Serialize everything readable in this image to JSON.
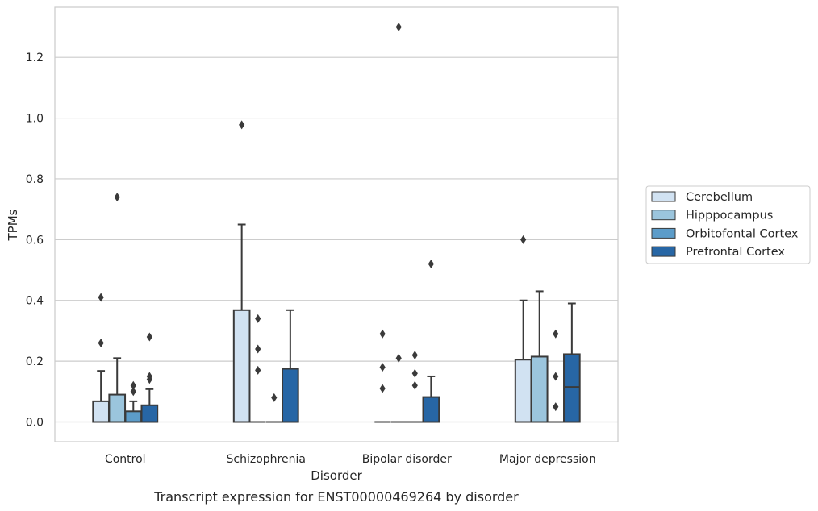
{
  "chart_data": {
    "type": "box",
    "caption": "Transcript expression for ENST00000469264 by disorder",
    "xlabel": "Disorder",
    "ylabel": "TPMs",
    "ylim": [
      -0.065,
      1.365
    ],
    "yticks": [
      0.0,
      0.2,
      0.4,
      0.6,
      0.8,
      1.0,
      1.2
    ],
    "ytick_labels": [
      "0.0",
      "0.2",
      "0.4",
      "0.6",
      "0.8",
      "1.0",
      "1.2"
    ],
    "grid": "horizontal",
    "legend_position": "right",
    "categories": [
      "Control",
      "Schizophrenia",
      "Bipolar disorder",
      "Major depression"
    ],
    "series": [
      {
        "name": "Cerebellum",
        "color": "#d1e2f2",
        "boxes": [
          {
            "q1": 0.0,
            "median": 0.0,
            "q3": 0.068,
            "whisker_low": 0.0,
            "whisker_high": 0.168,
            "outliers": [
              0.41,
              0.26
            ]
          },
          {
            "q1": 0.0,
            "median": 0.0,
            "q3": 0.368,
            "whisker_low": 0.0,
            "whisker_high": 0.65,
            "outliers": [
              0.978
            ]
          },
          {
            "q1": 0.0,
            "median": 0.0,
            "q3": 0.0,
            "whisker_low": 0.0,
            "whisker_high": 0.0,
            "outliers": [
              0.29,
              0.18,
              0.11
            ]
          },
          {
            "q1": 0.0,
            "median": 0.0,
            "q3": 0.205,
            "whisker_low": 0.0,
            "whisker_high": 0.4,
            "outliers": [
              0.6
            ]
          }
        ]
      },
      {
        "name": "Hipppocampus",
        "color": "#9bc5dd",
        "boxes": [
          {
            "q1": 0.0,
            "median": 0.0,
            "q3": 0.09,
            "whisker_low": 0.0,
            "whisker_high": 0.21,
            "outliers": [
              0.74
            ]
          },
          {
            "q1": 0.0,
            "median": 0.0,
            "q3": 0.0,
            "whisker_low": 0.0,
            "whisker_high": 0.0,
            "outliers": [
              0.34,
              0.24,
              0.17
            ]
          },
          {
            "q1": 0.0,
            "median": 0.0,
            "q3": 0.0,
            "whisker_low": 0.0,
            "whisker_high": 0.0,
            "outliers": [
              1.3,
              0.21
            ]
          },
          {
            "q1": 0.0,
            "median": 0.0,
            "q3": 0.215,
            "whisker_low": 0.0,
            "whisker_high": 0.43,
            "outliers": []
          }
        ]
      },
      {
        "name": "Orbitofontal Cortex",
        "color": "#5c9cc9",
        "boxes": [
          {
            "q1": 0.0,
            "median": 0.0,
            "q3": 0.035,
            "whisker_low": 0.0,
            "whisker_high": 0.068,
            "outliers": [
              0.12,
              0.1
            ]
          },
          {
            "q1": 0.0,
            "median": 0.0,
            "q3": 0.0,
            "whisker_low": 0.0,
            "whisker_high": 0.0,
            "outliers": [
              0.08
            ]
          },
          {
            "q1": 0.0,
            "median": 0.0,
            "q3": 0.0,
            "whisker_low": 0.0,
            "whisker_high": 0.0,
            "outliers": [
              0.22,
              0.16,
              0.12
            ]
          },
          {
            "q1": 0.0,
            "median": 0.0,
            "q3": 0.0,
            "whisker_low": 0.0,
            "whisker_high": 0.0,
            "outliers": [
              0.29,
              0.15,
              0.05
            ]
          }
        ]
      },
      {
        "name": "Prefrontal Cortex",
        "color": "#2766a5",
        "boxes": [
          {
            "q1": 0.0,
            "median": 0.0,
            "q3": 0.055,
            "whisker_low": 0.0,
            "whisker_high": 0.108,
            "outliers": [
              0.28,
              0.15,
              0.14
            ]
          },
          {
            "q1": 0.0,
            "median": 0.0,
            "q3": 0.175,
            "whisker_low": 0.0,
            "whisker_high": 0.368,
            "outliers": []
          },
          {
            "q1": 0.0,
            "median": 0.0,
            "q3": 0.082,
            "whisker_low": 0.0,
            "whisker_high": 0.15,
            "outliers": [
              0.52
            ]
          },
          {
            "q1": 0.0,
            "median": 0.115,
            "q3": 0.223,
            "whisker_low": 0.0,
            "whisker_high": 0.39,
            "outliers": []
          }
        ]
      }
    ]
  }
}
